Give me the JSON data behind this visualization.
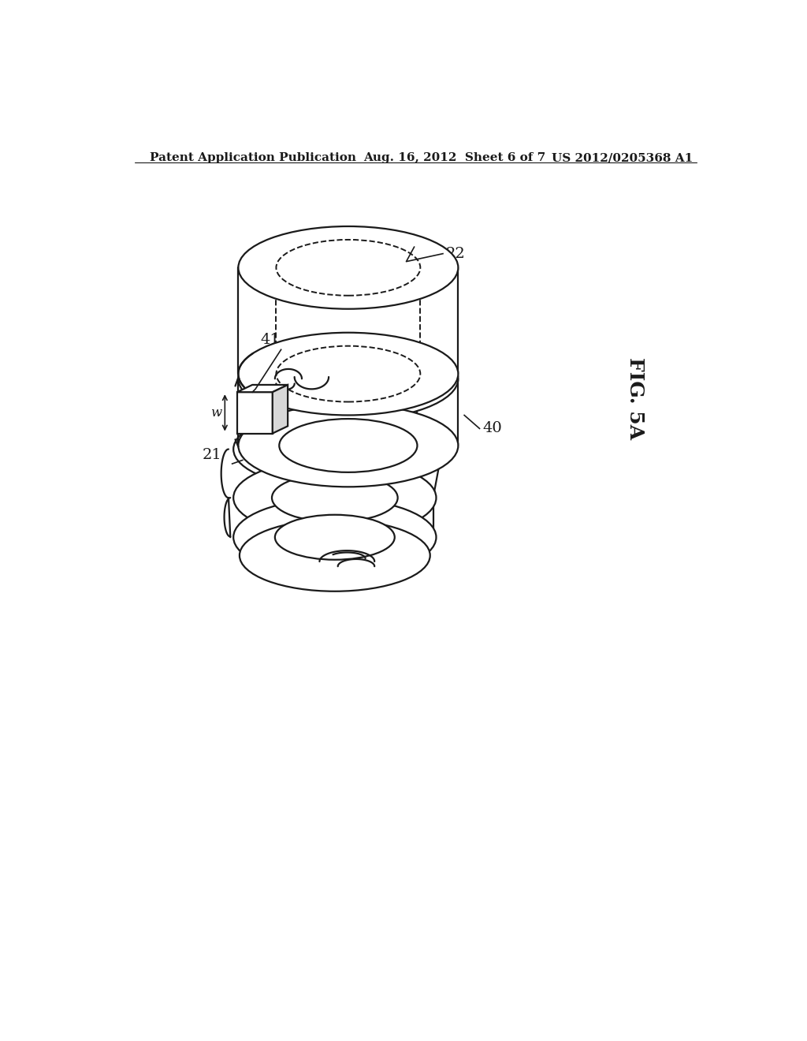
{
  "background_color": "#ffffff",
  "header_left": "Patent Application Publication",
  "header_center": "Aug. 16, 2012  Sheet 6 of 7",
  "header_right": "US 2012/0205368 A1",
  "fig_label": "FIG. 5A",
  "line_color": "#1a1a1a",
  "line_width": 1.6,
  "label_fontsize": 14,
  "header_fontsize": 11,
  "fig_label_fontsize": 18
}
